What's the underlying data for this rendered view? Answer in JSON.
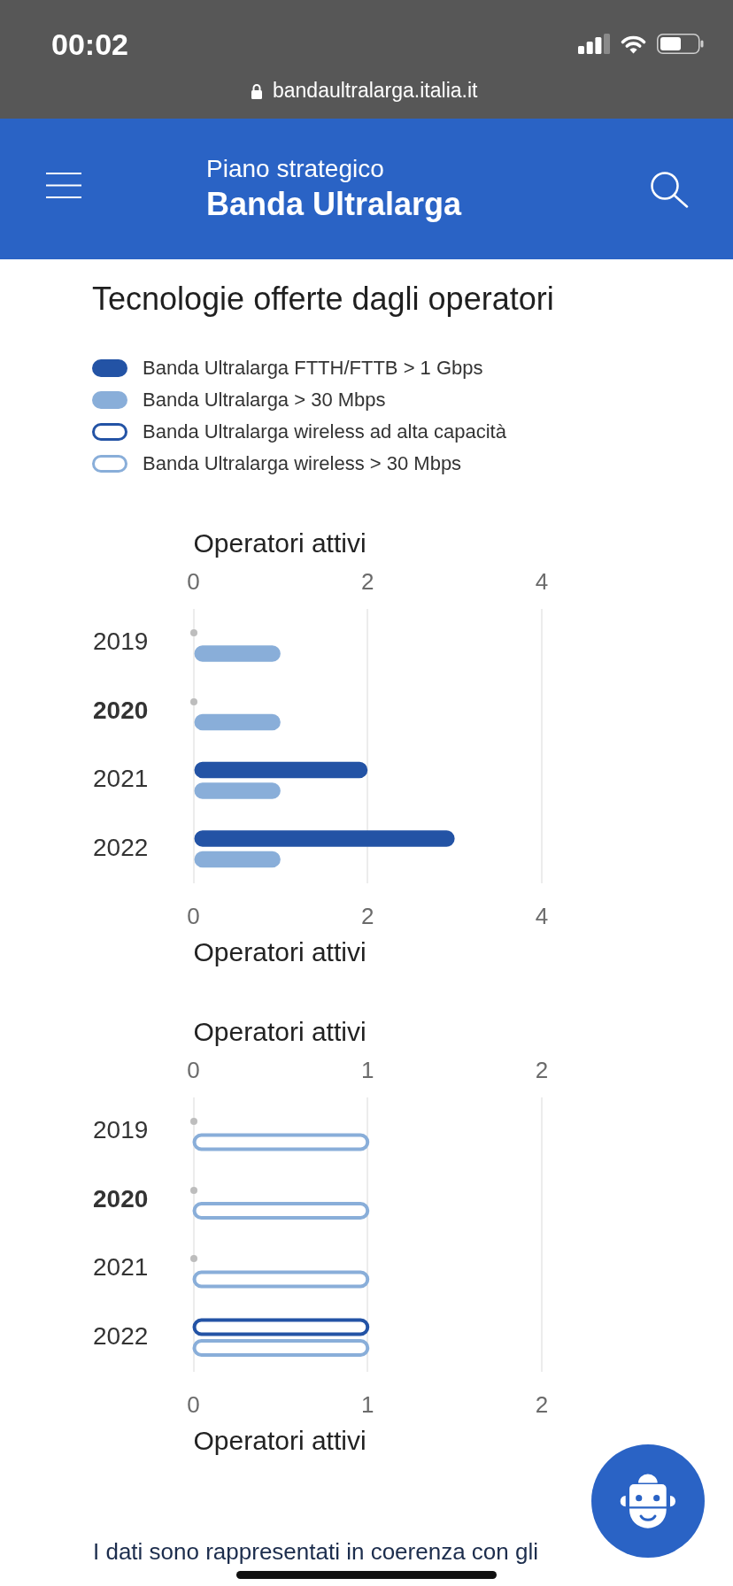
{
  "chart_data": [
    {
      "type": "bar",
      "orientation": "horizontal",
      "title": "Tecnologie offerte dagli operatori",
      "categories": [
        "2019",
        "2020",
        "2021",
        "2022"
      ],
      "series": [
        {
          "name": "Banda Ultralarga FTTH/FTTB > 1 Gbps",
          "color": "#2353a5",
          "values": [
            0,
            0,
            2,
            3
          ]
        },
        {
          "name": "Banda Ultralarga > 30 Mbps",
          "color": "#89aed9",
          "values": [
            1,
            1,
            1,
            1
          ]
        }
      ],
      "xlabel": "Operatori attivi",
      "xlim": [
        0,
        4
      ],
      "xticks": [
        0,
        2,
        4
      ],
      "x2label": "Operatori attivi",
      "x2lim": [
        0,
        4
      ],
      "x2ticks": [
        0,
        2,
        4
      ],
      "grid": "x",
      "legend": "top",
      "annotations": [
        "00:02",
        "bandaultralarga.italia.it",
        "Piano strategico",
        "Banda Ultralarga"
      ]
    },
    {
      "type": "bar",
      "orientation": "horizontal",
      "categories": [
        "2019",
        "2020",
        "2021",
        "2022"
      ],
      "series": [
        {
          "name": "Banda Ultralarga wireless ad alta capacità",
          "color": "#2353a5",
          "values": [
            0,
            0,
            0,
            1
          ]
        },
        {
          "name": "Banda Ultralarga wireless > 30 Mbps",
          "color": "#89aed9",
          "values": [
            1,
            1,
            1,
            1
          ]
        }
      ],
      "xlabel": "Operatori attivi",
      "xlim": [
        0,
        2
      ],
      "xticks": [
        0,
        1,
        2
      ],
      "x2label": "Operatori attivi",
      "x2lim": [
        0,
        2
      ],
      "x2ticks": [
        0,
        1,
        2
      ],
      "grid": "x",
      "legend": "top",
      "annotations": [
        "I dati sono rappresentati in coerenza con gli"
      ]
    }
  ]
}
